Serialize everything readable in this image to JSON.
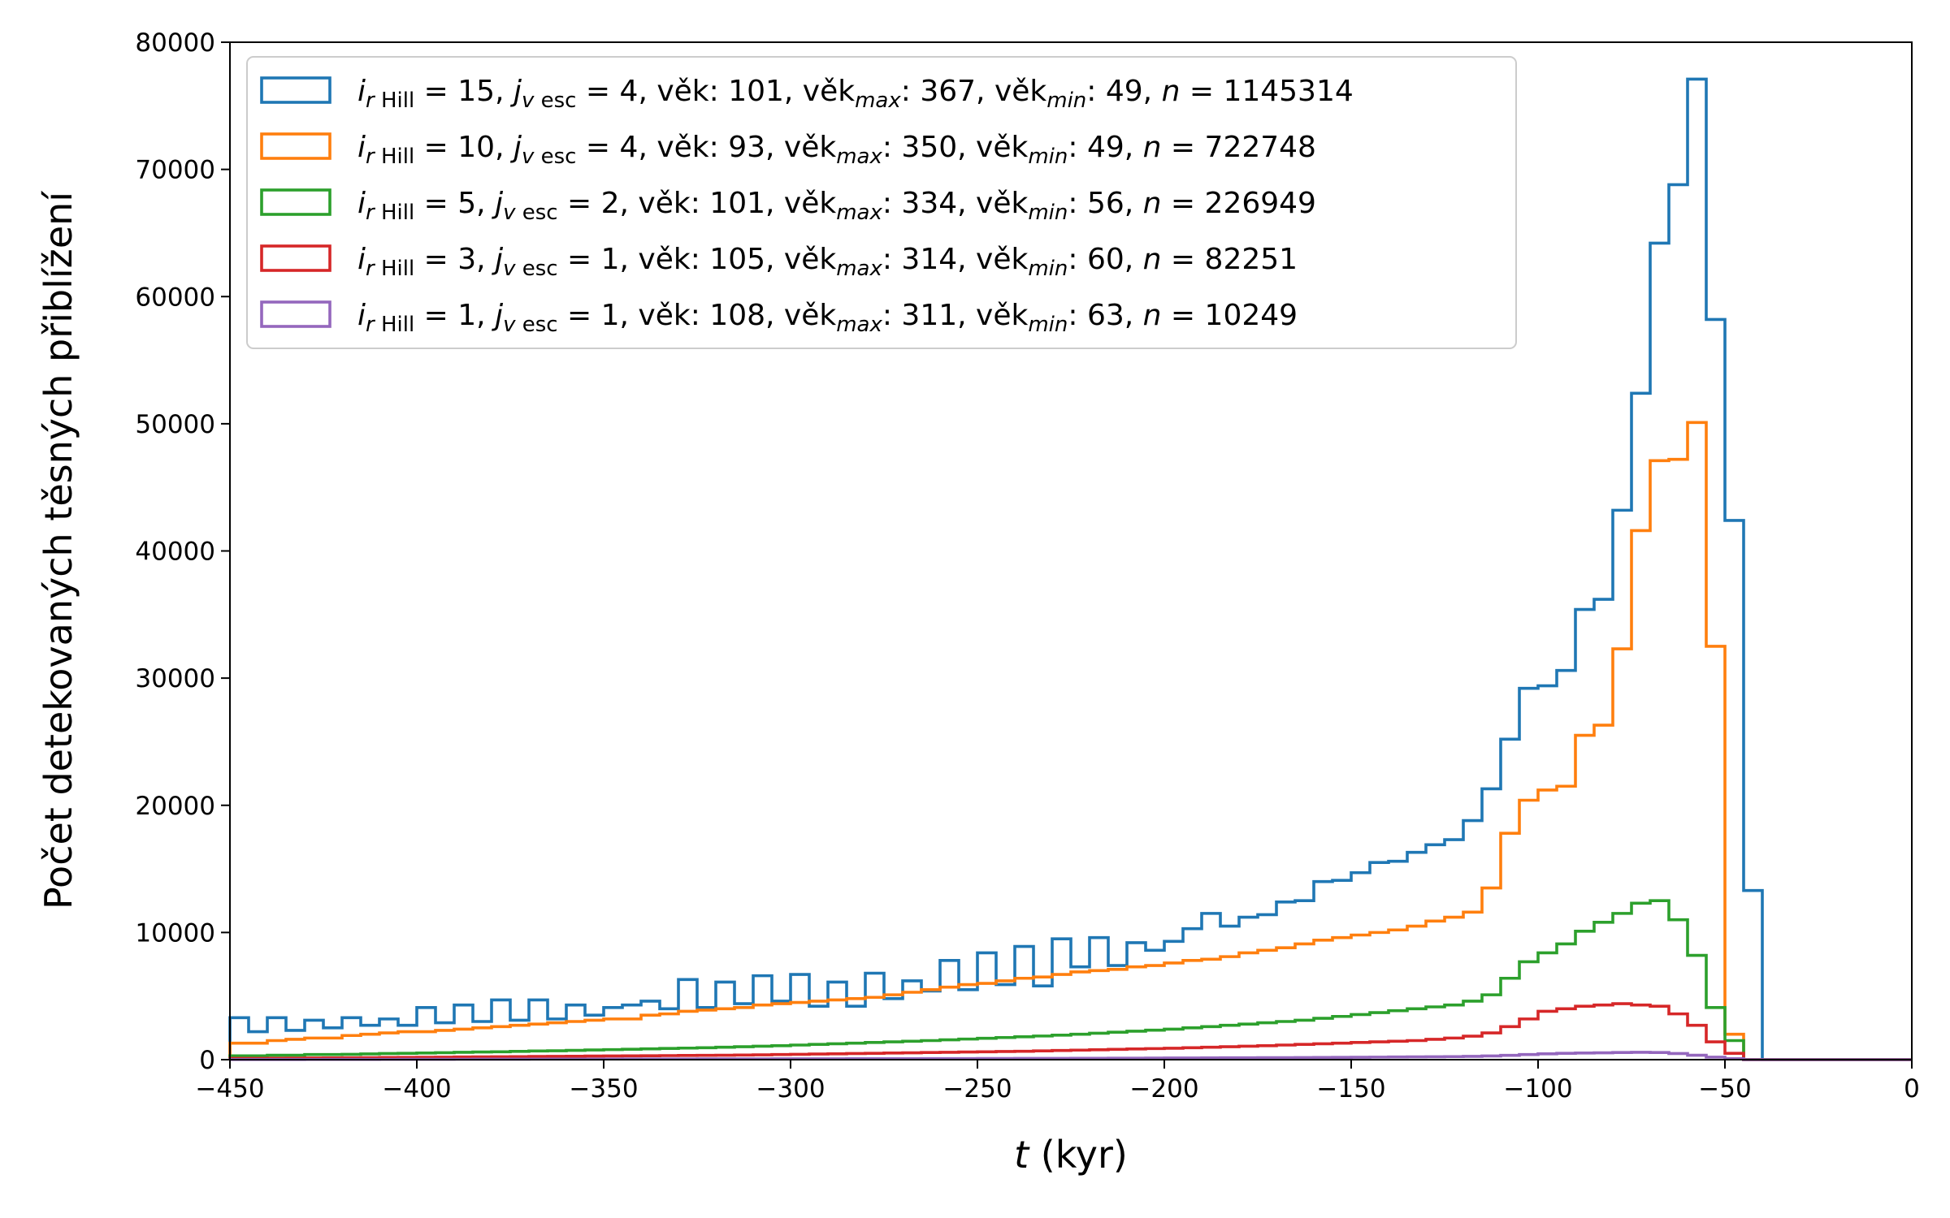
{
  "chart_data": {
    "type": "histogram-step",
    "title": "",
    "xlabel_var": "t",
    "xlabel_unit": " (kyr)",
    "ylabel": "Počet detekovaných těsných přiblížení",
    "xlim": [
      -450,
      0
    ],
    "ylim": [
      0,
      80000
    ],
    "xticks": [
      -450,
      -400,
      -350,
      -300,
      -250,
      -200,
      -150,
      -100,
      -50,
      0
    ],
    "xtick_labels": [
      "−450",
      "−400",
      "−350",
      "−300",
      "−250",
      "−200",
      "−150",
      "−100",
      "−50",
      "0"
    ],
    "yticks": [
      0,
      10000,
      20000,
      30000,
      40000,
      50000,
      60000,
      70000,
      80000
    ],
    "ytick_labels": [
      "0",
      "10000",
      "20000",
      "30000",
      "40000",
      "50000",
      "60000",
      "70000",
      "80000"
    ],
    "bin_width": 5,
    "bin_start": -450,
    "legend_position": "top-left",
    "series": [
      {
        "color": "#1f77b4",
        "legend": {
          "i": "15",
          "j": "4",
          "vek": "101",
          "vekmax": "367",
          "vekmin": "49",
          "n": "1145314"
        },
        "values": [
          3300,
          2200,
          3300,
          2300,
          3100,
          2500,
          3300,
          2700,
          3200,
          2700,
          4100,
          2900,
          4300,
          3000,
          4700,
          3100,
          4700,
          3200,
          4300,
          3500,
          4100,
          4300,
          4600,
          4000,
          6300,
          4100,
          6100,
          4400,
          6600,
          4600,
          6700,
          4200,
          6100,
          4200,
          6800,
          4800,
          6200,
          5400,
          7800,
          5500,
          8400,
          5900,
          8900,
          5800,
          9500,
          7300,
          9600,
          7400,
          9200,
          8600,
          9300,
          10300,
          11500,
          10500,
          11200,
          11400,
          12400,
          12500,
          14000,
          14100,
          14700,
          15500,
          15600,
          16300,
          16900,
          17300,
          18800,
          21300,
          25200,
          29200,
          29400,
          30600,
          35400,
          36200,
          43200,
          52400,
          64200,
          68800,
          77100,
          58200,
          42400,
          13300,
          0,
          0,
          0,
          0,
          0,
          0,
          0,
          0
        ]
      },
      {
        "color": "#ff7f0e",
        "legend": {
          "i": "10",
          "j": "4",
          "vek": " 93",
          "vekmax": "350",
          "vekmin": "49",
          "n": "722748"
        },
        "values": [
          1300,
          1300,
          1500,
          1600,
          1700,
          1700,
          1900,
          2000,
          2100,
          2200,
          2200,
          2300,
          2400,
          2500,
          2600,
          2700,
          2800,
          2900,
          3000,
          3100,
          3200,
          3200,
          3500,
          3600,
          3800,
          3900,
          4000,
          4100,
          4300,
          4400,
          4500,
          4600,
          4700,
          4800,
          4900,
          5100,
          5300,
          5500,
          5700,
          5900,
          6000,
          6200,
          6400,
          6500,
          6700,
          6900,
          7000,
          7100,
          7300,
          7400,
          7600,
          7800,
          7900,
          8100,
          8400,
          8600,
          8800,
          9100,
          9400,
          9600,
          9800,
          10000,
          10200,
          10500,
          10900,
          11200,
          11600,
          13500,
          17800,
          20400,
          21200,
          21500,
          25500,
          26300,
          32300,
          41600,
          47100,
          47200,
          50100,
          32500,
          2000,
          0,
          0,
          0,
          0,
          0,
          0,
          0,
          0,
          0
        ]
      },
      {
        "color": "#2ca02c",
        "legend": {
          "i": " 5",
          "j": "2",
          "vek": "101",
          "vekmax": "334",
          "vekmin": "56",
          "n": "226949"
        },
        "values": [
          300,
          300,
          350,
          350,
          400,
          400,
          420,
          450,
          480,
          500,
          520,
          550,
          580,
          600,
          620,
          650,
          680,
          700,
          730,
          760,
          790,
          820,
          850,
          880,
          910,
          940,
          980,
          1020,
          1060,
          1100,
          1150,
          1200,
          1250,
          1300,
          1350,
          1400,
          1450,
          1500,
          1560,
          1620,
          1680,
          1740,
          1800,
          1860,
          1930,
          2000,
          2080,
          2160,
          2240,
          2320,
          2400,
          2500,
          2600,
          2700,
          2800,
          2900,
          3000,
          3100,
          3250,
          3400,
          3550,
          3700,
          3850,
          4000,
          4150,
          4300,
          4600,
          5100,
          6400,
          7700,
          8400,
          9100,
          10100,
          10800,
          11500,
          12300,
          12500,
          11000,
          8200,
          4100,
          1500,
          0,
          0,
          0,
          0,
          0,
          0,
          0,
          0,
          0
        ]
      },
      {
        "color": "#d62728",
        "legend": {
          "i": " 3",
          "j": "1",
          "vek": "105",
          "vekmax": "314",
          "vekmin": "60",
          "n": "82251"
        },
        "values": [
          100,
          100,
          110,
          120,
          130,
          140,
          150,
          160,
          170,
          180,
          190,
          200,
          210,
          220,
          230,
          240,
          250,
          260,
          270,
          280,
          290,
          300,
          310,
          320,
          330,
          340,
          350,
          360,
          380,
          400,
          420,
          440,
          460,
          480,
          500,
          520,
          540,
          560,
          580,
          600,
          620,
          640,
          660,
          690,
          720,
          750,
          780,
          810,
          840,
          870,
          900,
          940,
          980,
          1020,
          1060,
          1100,
          1150,
          1200,
          1250,
          1300,
          1350,
          1400,
          1450,
          1500,
          1600,
          1700,
          1850,
          2100,
          2600,
          3200,
          3800,
          4000,
          4200,
          4300,
          4400,
          4300,
          4200,
          3600,
          2700,
          1400,
          500,
          0,
          0,
          0,
          0,
          0,
          0,
          0,
          0,
          0
        ]
      },
      {
        "color": "#9467bd",
        "legend": {
          "i": " 1",
          "j": "1",
          "vek": "108",
          "vekmax": "311",
          "vekmin": "63",
          "n": "10249"
        },
        "values": [
          10,
          10,
          12,
          14,
          16,
          18,
          20,
          22,
          24,
          26,
          28,
          30,
          32,
          34,
          36,
          38,
          40,
          42,
          44,
          46,
          48,
          50,
          52,
          54,
          56,
          58,
          60,
          62,
          64,
          66,
          68,
          70,
          72,
          74,
          76,
          78,
          80,
          82,
          85,
          88,
          91,
          94,
          97,
          100,
          104,
          108,
          112,
          116,
          120,
          125,
          130,
          135,
          140,
          145,
          150,
          155,
          160,
          165,
          170,
          180,
          190,
          200,
          210,
          220,
          230,
          240,
          260,
          290,
          340,
          400,
          460,
          500,
          520,
          540,
          560,
          580,
          560,
          480,
          350,
          200,
          80,
          0,
          0,
          0,
          0,
          0,
          0,
          0,
          0,
          0
        ]
      }
    ]
  }
}
